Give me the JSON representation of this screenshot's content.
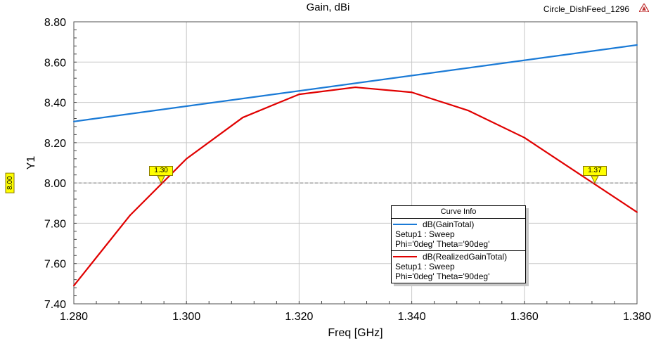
{
  "header": {
    "title": "Gain, dBi",
    "project": "Circle_DishFeed_1296"
  },
  "chart_data": {
    "type": "line",
    "xlabel": "Freq [GHz]",
    "ylabel": "Y1",
    "xlim": [
      1.28,
      1.38
    ],
    "ylim": [
      7.4,
      8.8
    ],
    "x_ticks": [
      "1.280",
      "1.300",
      "1.320",
      "1.340",
      "1.360",
      "1.380"
    ],
    "y_ticks": [
      "7.40",
      "7.60",
      "7.80",
      "8.00",
      "8.20",
      "8.40",
      "8.60",
      "8.80"
    ],
    "grid": true,
    "legend_position": "bottom-right",
    "reference_line": {
      "y": 8.0,
      "label": "8.00"
    },
    "markers": [
      {
        "label": "1.30",
        "x": 1.2955,
        "y": 8.0
      },
      {
        "label": "1.37",
        "x": 1.3725,
        "y": 8.0
      }
    ],
    "series": [
      {
        "name": "dB(GainTotal)",
        "color": "#1a7ad6",
        "x": [
          1.28,
          1.38
        ],
        "y": [
          8.305,
          8.685
        ]
      },
      {
        "name": "dB(RealizedGainTotal)",
        "color": "#e00000",
        "x": [
          1.28,
          1.29,
          1.3,
          1.31,
          1.32,
          1.33,
          1.34,
          1.35,
          1.36,
          1.37,
          1.38
        ],
        "y": [
          7.49,
          7.84,
          8.12,
          8.325,
          8.44,
          8.475,
          8.45,
          8.36,
          8.225,
          8.04,
          7.855
        ]
      }
    ]
  },
  "legend": {
    "title": "Curve Info",
    "items": [
      {
        "name": "dB(GainTotal)",
        "color": "#1a7ad6",
        "line1": "Setup1 : Sweep",
        "line2": "Phi='0deg' Theta='90deg'"
      },
      {
        "name": "dB(RealizedGainTotal)",
        "color": "#e00000",
        "line1": "Setup1 : Sweep",
        "line2": "Phi='0deg' Theta='90deg'"
      }
    ]
  }
}
